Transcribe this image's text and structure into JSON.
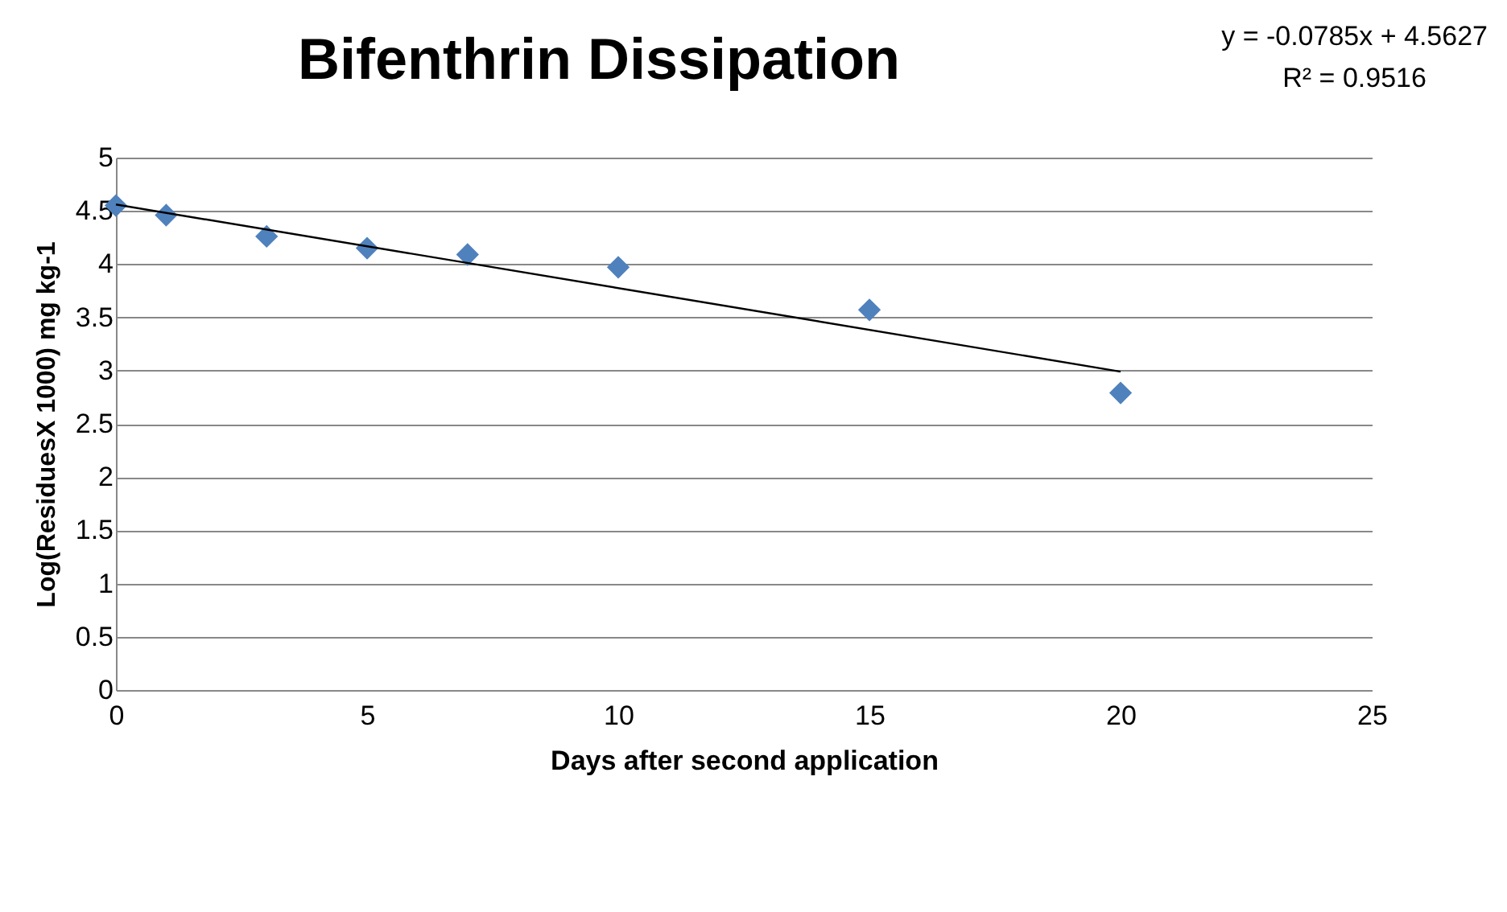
{
  "chart_data": {
    "type": "scatter",
    "title": "Bifenthrin Dissipation",
    "xlabel": "Days after second application",
    "ylabel": "Log(ResiduesX 1000) mg kg-1",
    "annotations": [
      "y = -0.0785x + 4.5627",
      "R² = 0.9516"
    ],
    "x": [
      0,
      1,
      3,
      5,
      7,
      10,
      15,
      20
    ],
    "series": [
      {
        "color": "#4f81bd",
        "values": [
          4.55,
          4.46,
          4.26,
          4.15,
          4.09,
          3.97,
          3.57,
          2.79
        ]
      },
      {
        "type": "line",
        "color": "#000000",
        "marker": "none",
        "x": [
          0,
          20
        ],
        "values": [
          4.56,
          2.99
        ]
      }
    ],
    "xlim": [
      0,
      25
    ],
    "xticks": [
      0,
      5,
      10,
      15,
      20,
      25
    ],
    "ylim": [
      0,
      5
    ],
    "yticks": [
      0,
      0.5,
      1,
      1.5,
      2,
      2.5,
      3,
      3.5,
      4,
      4.5,
      5
    ],
    "grid": "y",
    "marker": "diamond"
  }
}
